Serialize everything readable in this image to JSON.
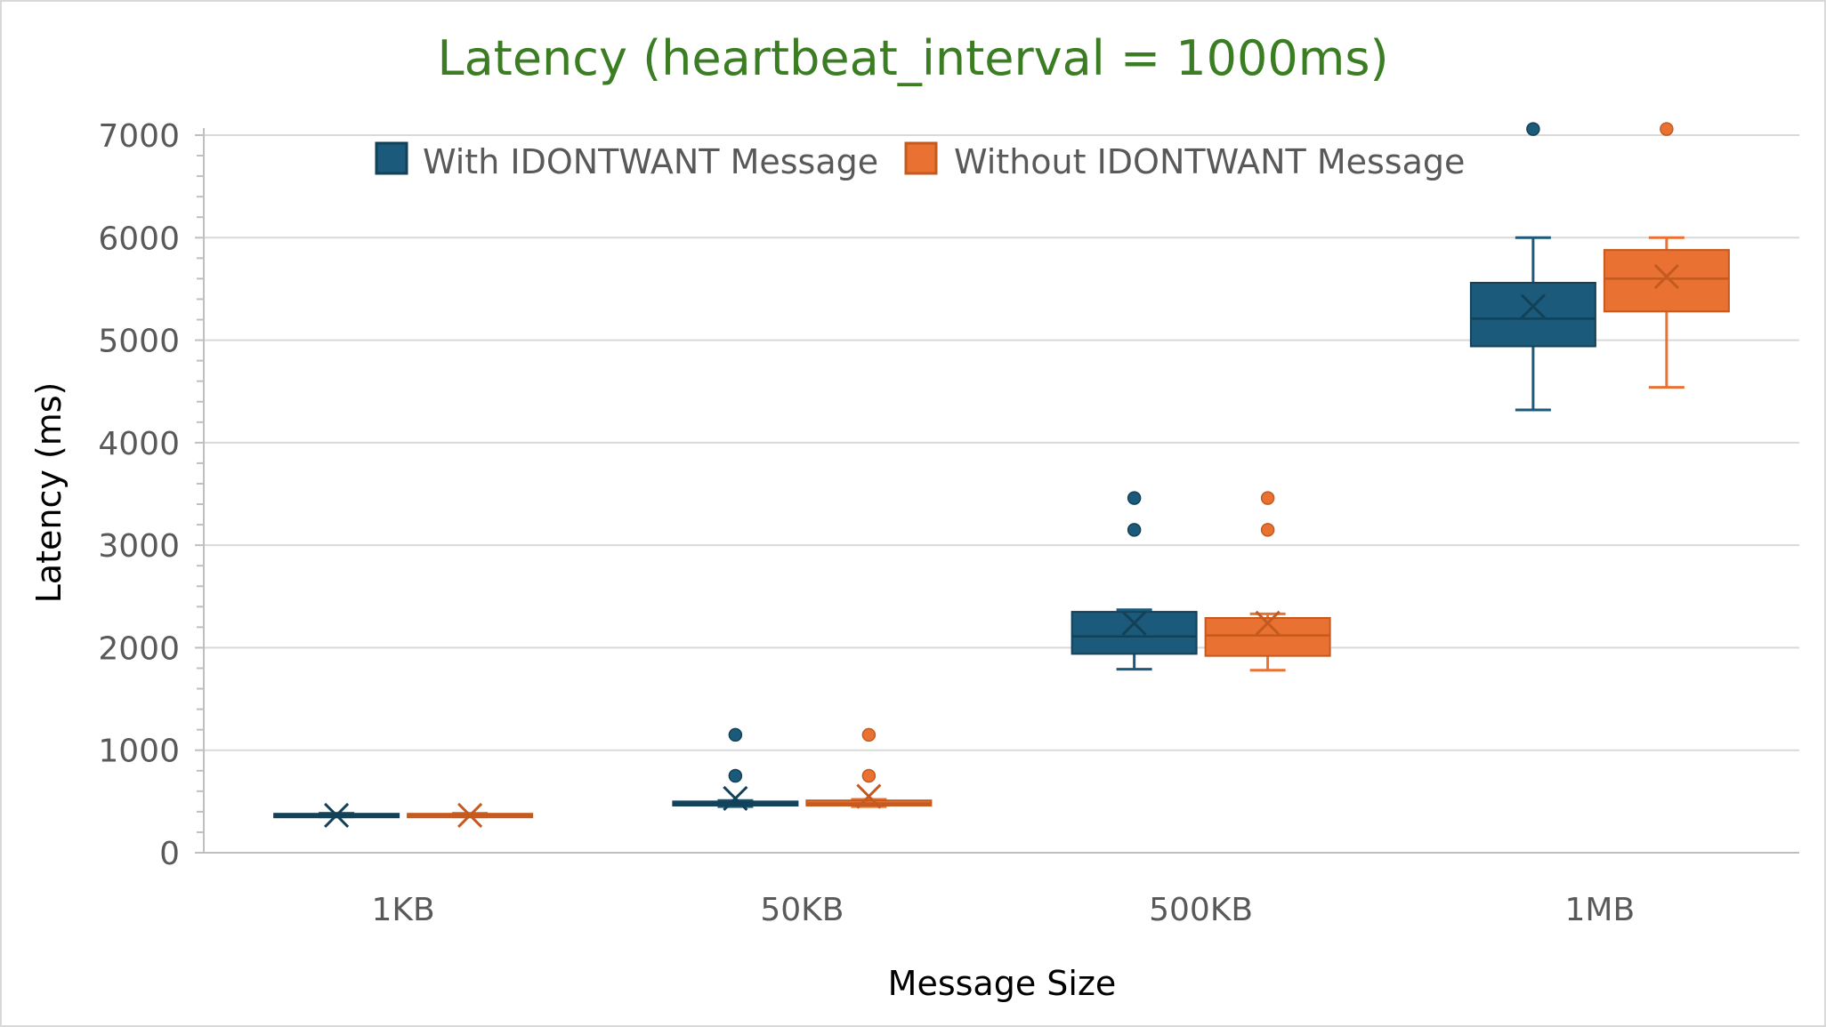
{
  "chart_data": {
    "type": "box",
    "title": "Latency (heartbeat_interval = 1000ms)",
    "xlabel": "Message Size",
    "ylabel": "Latency (ms)",
    "categories": [
      "1KB",
      "50KB",
      "500KB",
      "1MB"
    ],
    "ylim": [
      0,
      7000
    ],
    "yticks": [
      0,
      1000,
      2000,
      3000,
      4000,
      5000,
      6000,
      7000
    ],
    "grid": true,
    "legend_position": "top",
    "series": [
      {
        "name": "With IDONTWANT Message",
        "color": "#1b5a7a",
        "boxes": [
          {
            "category": "1KB",
            "min": 350,
            "q1": 355,
            "median": 365,
            "q3": 380,
            "max": 385,
            "mean": 365,
            "outliers": []
          },
          {
            "category": "50KB",
            "min": 450,
            "q1": 460,
            "median": 480,
            "q3": 500,
            "max": 510,
            "mean": 530,
            "outliers": [
              750,
              1150
            ]
          },
          {
            "category": "500KB",
            "min": 1790,
            "q1": 1940,
            "median": 2110,
            "q3": 2350,
            "max": 2370,
            "mean": 2240,
            "outliers": [
              3150,
              3460
            ]
          },
          {
            "category": "1MB",
            "min": 4320,
            "q1": 4940,
            "median": 5210,
            "q3": 5560,
            "max": 6000,
            "mean": 5330,
            "outliers": [
              7060
            ]
          }
        ]
      },
      {
        "name": "Without IDONTWANT Message",
        "color": "#e97132",
        "boxes": [
          {
            "category": "1KB",
            "min": 350,
            "q1": 355,
            "median": 365,
            "q3": 380,
            "max": 385,
            "mean": 365,
            "outliers": []
          },
          {
            "category": "50KB",
            "min": 450,
            "q1": 460,
            "median": 480,
            "q3": 510,
            "max": 520,
            "mean": 550,
            "outliers": [
              750,
              1150
            ]
          },
          {
            "category": "500KB",
            "min": 1780,
            "q1": 1920,
            "median": 2120,
            "q3": 2290,
            "max": 2330,
            "mean": 2240,
            "outliers": [
              3150,
              3460
            ]
          },
          {
            "category": "1MB",
            "min": 4540,
            "q1": 5280,
            "median": 5600,
            "q3": 5880,
            "max": 6000,
            "mean": 5620,
            "outliers": [
              7060
            ]
          }
        ]
      }
    ]
  }
}
